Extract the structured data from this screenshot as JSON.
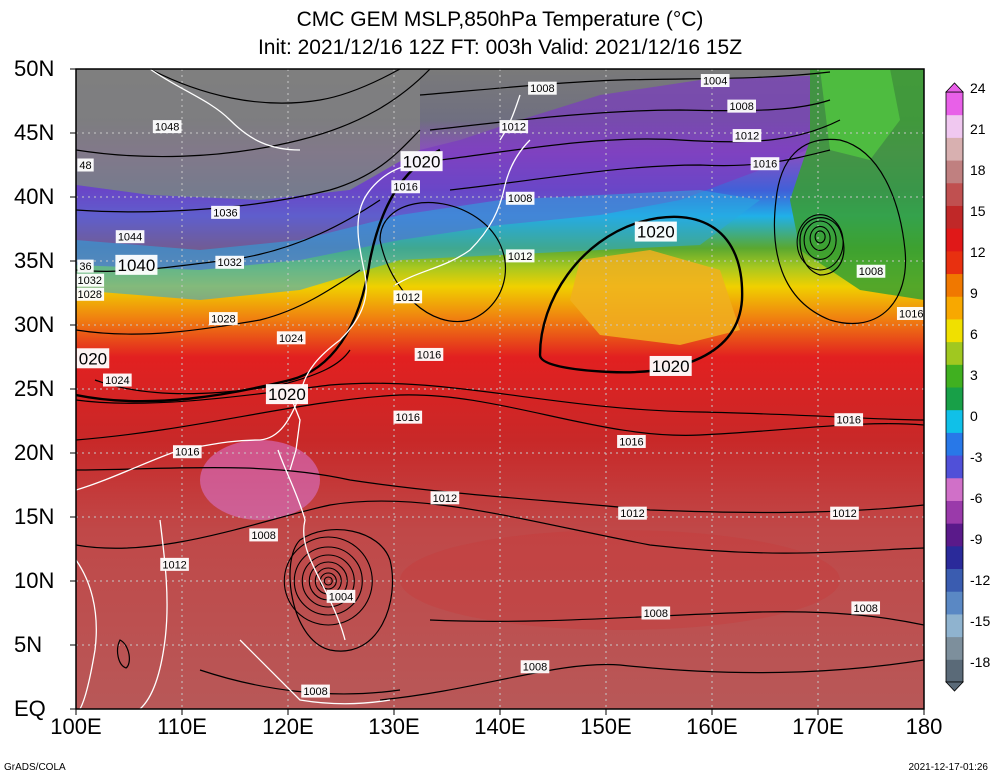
{
  "title": {
    "line1": "CMC GEM MSLP,850hPa Temperature (°C)",
    "line2": "Init: 2021/12/16 12Z  FT: 003h  Valid: 2021/12/16 15Z"
  },
  "axes": {
    "lat_labels": [
      "50N",
      "45N",
      "40N",
      "35N",
      "30N",
      "25N",
      "20N",
      "15N",
      "10N",
      "5N",
      "EQ"
    ],
    "lon_labels": [
      "100E",
      "110E",
      "120E",
      "130E",
      "140E",
      "150E",
      "160E",
      "170E",
      "180"
    ]
  },
  "colorbar": {
    "labels": [
      "24",
      "21",
      "18",
      "15",
      "12",
      "9",
      "6",
      "3",
      "0",
      "-3",
      "-6",
      "-9",
      "-12",
      "-15",
      "-18"
    ],
    "colors": [
      "#5a6a78",
      "#7d8f9c",
      "#8fb3cf",
      "#5a88c4",
      "#3a5cb0",
      "#2a2a9a",
      "#5a1a8a",
      "#9a3aaa",
      "#d070c8",
      "#5050d8",
      "#2878e8",
      "#10c0e8",
      "#18a048",
      "#40b020",
      "#a0c820",
      "#f0e000",
      "#f8a800",
      "#f07800",
      "#e83010",
      "#e01818",
      "#c02828",
      "#c05050",
      "#c08080",
      "#d8b0b0",
      "#f0c8f0",
      "#e860e8"
    ]
  },
  "footer": {
    "left": "GrADS/COLA",
    "right": "2021-12-17-01:26"
  },
  "isobar_labels": [
    {
      "text": "1004",
      "lon": 160.3,
      "lat": 49.1
    },
    {
      "text": "1008",
      "lon": 144.0,
      "lat": 48.5
    },
    {
      "text": "1008",
      "lon": 162.8,
      "lat": 47.1
    },
    {
      "text": "1012",
      "lon": 141.3,
      "lat": 45.5
    },
    {
      "text": "1012",
      "lon": 163.3,
      "lat": 44.8
    },
    {
      "text": "1016",
      "lon": 165.0,
      "lat": 42.6
    },
    {
      "text": "1048",
      "lon": 108.6,
      "lat": 45.5
    },
    {
      "text": "1036",
      "lon": 114.1,
      "lat": 38.8
    },
    {
      "text": "1044",
      "lon": 105.1,
      "lat": 36.9
    },
    {
      "text": "1032",
      "lon": 114.5,
      "lat": 34.9
    },
    {
      "text": "1028",
      "lon": 113.9,
      "lat": 30.5
    },
    {
      "text": "1024",
      "lon": 120.3,
      "lat": 29.0
    },
    {
      "text": "1024",
      "lon": 103.9,
      "lat": 25.7
    },
    {
      "text": "1016",
      "lon": 131.1,
      "lat": 40.8
    },
    {
      "text": "1008",
      "lon": 141.9,
      "lat": 39.9
    },
    {
      "text": "1012",
      "lon": 141.9,
      "lat": 35.4
    },
    {
      "text": "1012",
      "lon": 131.3,
      "lat": 32.2
    },
    {
      "text": "1016",
      "lon": 133.3,
      "lat": 27.7
    },
    {
      "text": "1016",
      "lon": 131.3,
      "lat": 22.8
    },
    {
      "text": "1016",
      "lon": 152.4,
      "lat": 20.9
    },
    {
      "text": "1016",
      "lon": 172.9,
      "lat": 22.6
    },
    {
      "text": "1016",
      "lon": 110.5,
      "lat": 20.1
    },
    {
      "text": "1012",
      "lon": 134.8,
      "lat": 16.5
    },
    {
      "text": "1012",
      "lon": 152.5,
      "lat": 15.3
    },
    {
      "text": "1012",
      "lon": 172.5,
      "lat": 15.3
    },
    {
      "text": "1008",
      "lon": 117.7,
      "lat": 13.6
    },
    {
      "text": "1012",
      "lon": 109.3,
      "lat": 11.3
    },
    {
      "text": "1004",
      "lon": 125.0,
      "lat": 8.8
    },
    {
      "text": "1008",
      "lon": 154.7,
      "lat": 7.5
    },
    {
      "text": "1008",
      "lon": 174.5,
      "lat": 7.9
    },
    {
      "text": "1008",
      "lon": 143.3,
      "lat": 3.3
    },
    {
      "text": "1008",
      "lon": 122.6,
      "lat": 1.4
    },
    {
      "text": "1008",
      "lon": 175.0,
      "lat": 34.2
    },
    {
      "text": "1016",
      "lon": 178.8,
      "lat": 30.9
    },
    {
      "text": "48",
      "lon": 100.9,
      "lat": 42.5
    },
    {
      "text": "36",
      "lon": 100.9,
      "lat": 34.6
    },
    {
      "text": "1032",
      "lon": 101.3,
      "lat": 33.5
    },
    {
      "text": "1028",
      "lon": 101.3,
      "lat": 32.4
    }
  ],
  "high_labels": [
    {
      "text": "1020",
      "lon": 132.6,
      "lat": 42.8
    },
    {
      "text": "1040",
      "lon": 105.7,
      "lat": 34.7
    },
    {
      "text": "1020",
      "lon": 154.7,
      "lat": 37.3
    },
    {
      "text": "1020",
      "lon": 156.1,
      "lat": 26.8
    },
    {
      "text": "1020",
      "lon": 119.9,
      "lat": 24.6
    },
    {
      "text": "020",
      "lon": 101.6,
      "lat": 27.4
    }
  ]
}
